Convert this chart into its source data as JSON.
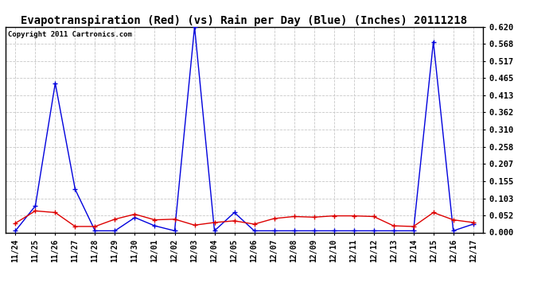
{
  "title": "Evapotranspiration (Red) (vs) Rain per Day (Blue) (Inches) 20111218",
  "copyright": "Copyright 2011 Cartronics.com",
  "labels": [
    "11/24",
    "11/25",
    "11/26",
    "11/27",
    "11/28",
    "11/29",
    "11/30",
    "12/01",
    "12/02",
    "12/03",
    "12/04",
    "12/05",
    "12/06",
    "12/07",
    "12/08",
    "12/09",
    "12/10",
    "12/11",
    "12/12",
    "12/13",
    "12/14",
    "12/15",
    "12/16",
    "12/17"
  ],
  "blue_data": [
    0.005,
    0.08,
    0.45,
    0.13,
    0.005,
    0.005,
    0.045,
    0.02,
    0.005,
    0.62,
    0.005,
    0.06,
    0.005,
    0.005,
    0.005,
    0.005,
    0.005,
    0.005,
    0.005,
    0.005,
    0.005,
    0.575,
    0.005,
    0.025
  ],
  "red_data": [
    0.028,
    0.065,
    0.06,
    0.018,
    0.018,
    0.04,
    0.055,
    0.038,
    0.04,
    0.022,
    0.03,
    0.035,
    0.025,
    0.042,
    0.048,
    0.046,
    0.05,
    0.05,
    0.048,
    0.02,
    0.018,
    0.06,
    0.038,
    0.03
  ],
  "ylim": [
    0.0,
    0.62
  ],
  "yticks": [
    0.0,
    0.052,
    0.103,
    0.155,
    0.207,
    0.258,
    0.31,
    0.362,
    0.413,
    0.465,
    0.517,
    0.568,
    0.62
  ],
  "bg_color": "#ffffff",
  "grid_color": "#c8c8c8",
  "blue_color": "#0000dd",
  "red_color": "#dd0000",
  "title_fontsize": 10,
  "copyright_fontsize": 6.5,
  "tick_fontsize": 7,
  "ytick_fontsize": 7.5
}
